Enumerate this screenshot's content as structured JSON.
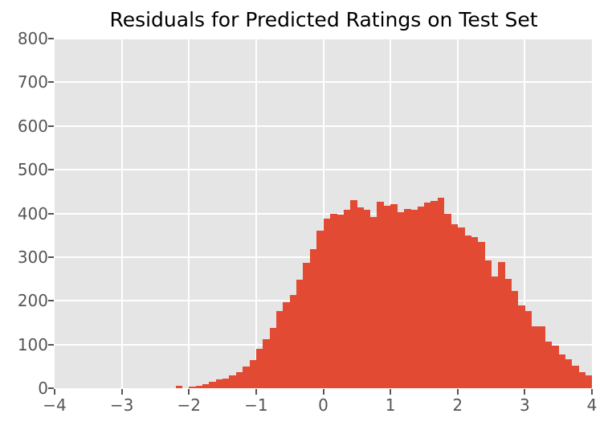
{
  "chart_data": {
    "type": "bar",
    "subtype": "histogram",
    "title": "Residuals for Predicted Ratings on Test Set",
    "xlabel": "",
    "ylabel": "",
    "xlim": [
      -4,
      4
    ],
    "ylim": [
      0,
      800
    ],
    "grid": true,
    "legend": false,
    "x_ticks": [
      -4,
      -3,
      -2,
      -1,
      0,
      1,
      2,
      3,
      4
    ],
    "x_tick_labels": [
      "−4",
      "−3",
      "−2",
      "−1",
      "0",
      "1",
      "2",
      "3",
      "4"
    ],
    "y_ticks": [
      0,
      100,
      200,
      300,
      400,
      500,
      600,
      700,
      800
    ],
    "y_tick_labels": [
      "0",
      "100",
      "200",
      "300",
      "400",
      "500",
      "600",
      "700",
      "800"
    ],
    "bin_start": -2.2,
    "bin_width": 0.1,
    "values": [
      5,
      0,
      3,
      5,
      9,
      15,
      20,
      23,
      30,
      36,
      50,
      65,
      90,
      112,
      138,
      176,
      196,
      213,
      248,
      287,
      319,
      360,
      388,
      400,
      397,
      409,
      430,
      413,
      409,
      391,
      427,
      418,
      422,
      403,
      410,
      408,
      415,
      424,
      428,
      435,
      400,
      376,
      367,
      350,
      345,
      334,
      293,
      256,
      288,
      250,
      223,
      190,
      177,
      142,
      142,
      106,
      98,
      78,
      66,
      52,
      37,
      30
    ],
    "colors": {
      "figure_background": "#ffffff",
      "plot_background": "#e5e5e5",
      "grid": "#ffffff",
      "bar": "#e24a33",
      "tick_label": "#555555",
      "title": "#000000"
    }
  }
}
